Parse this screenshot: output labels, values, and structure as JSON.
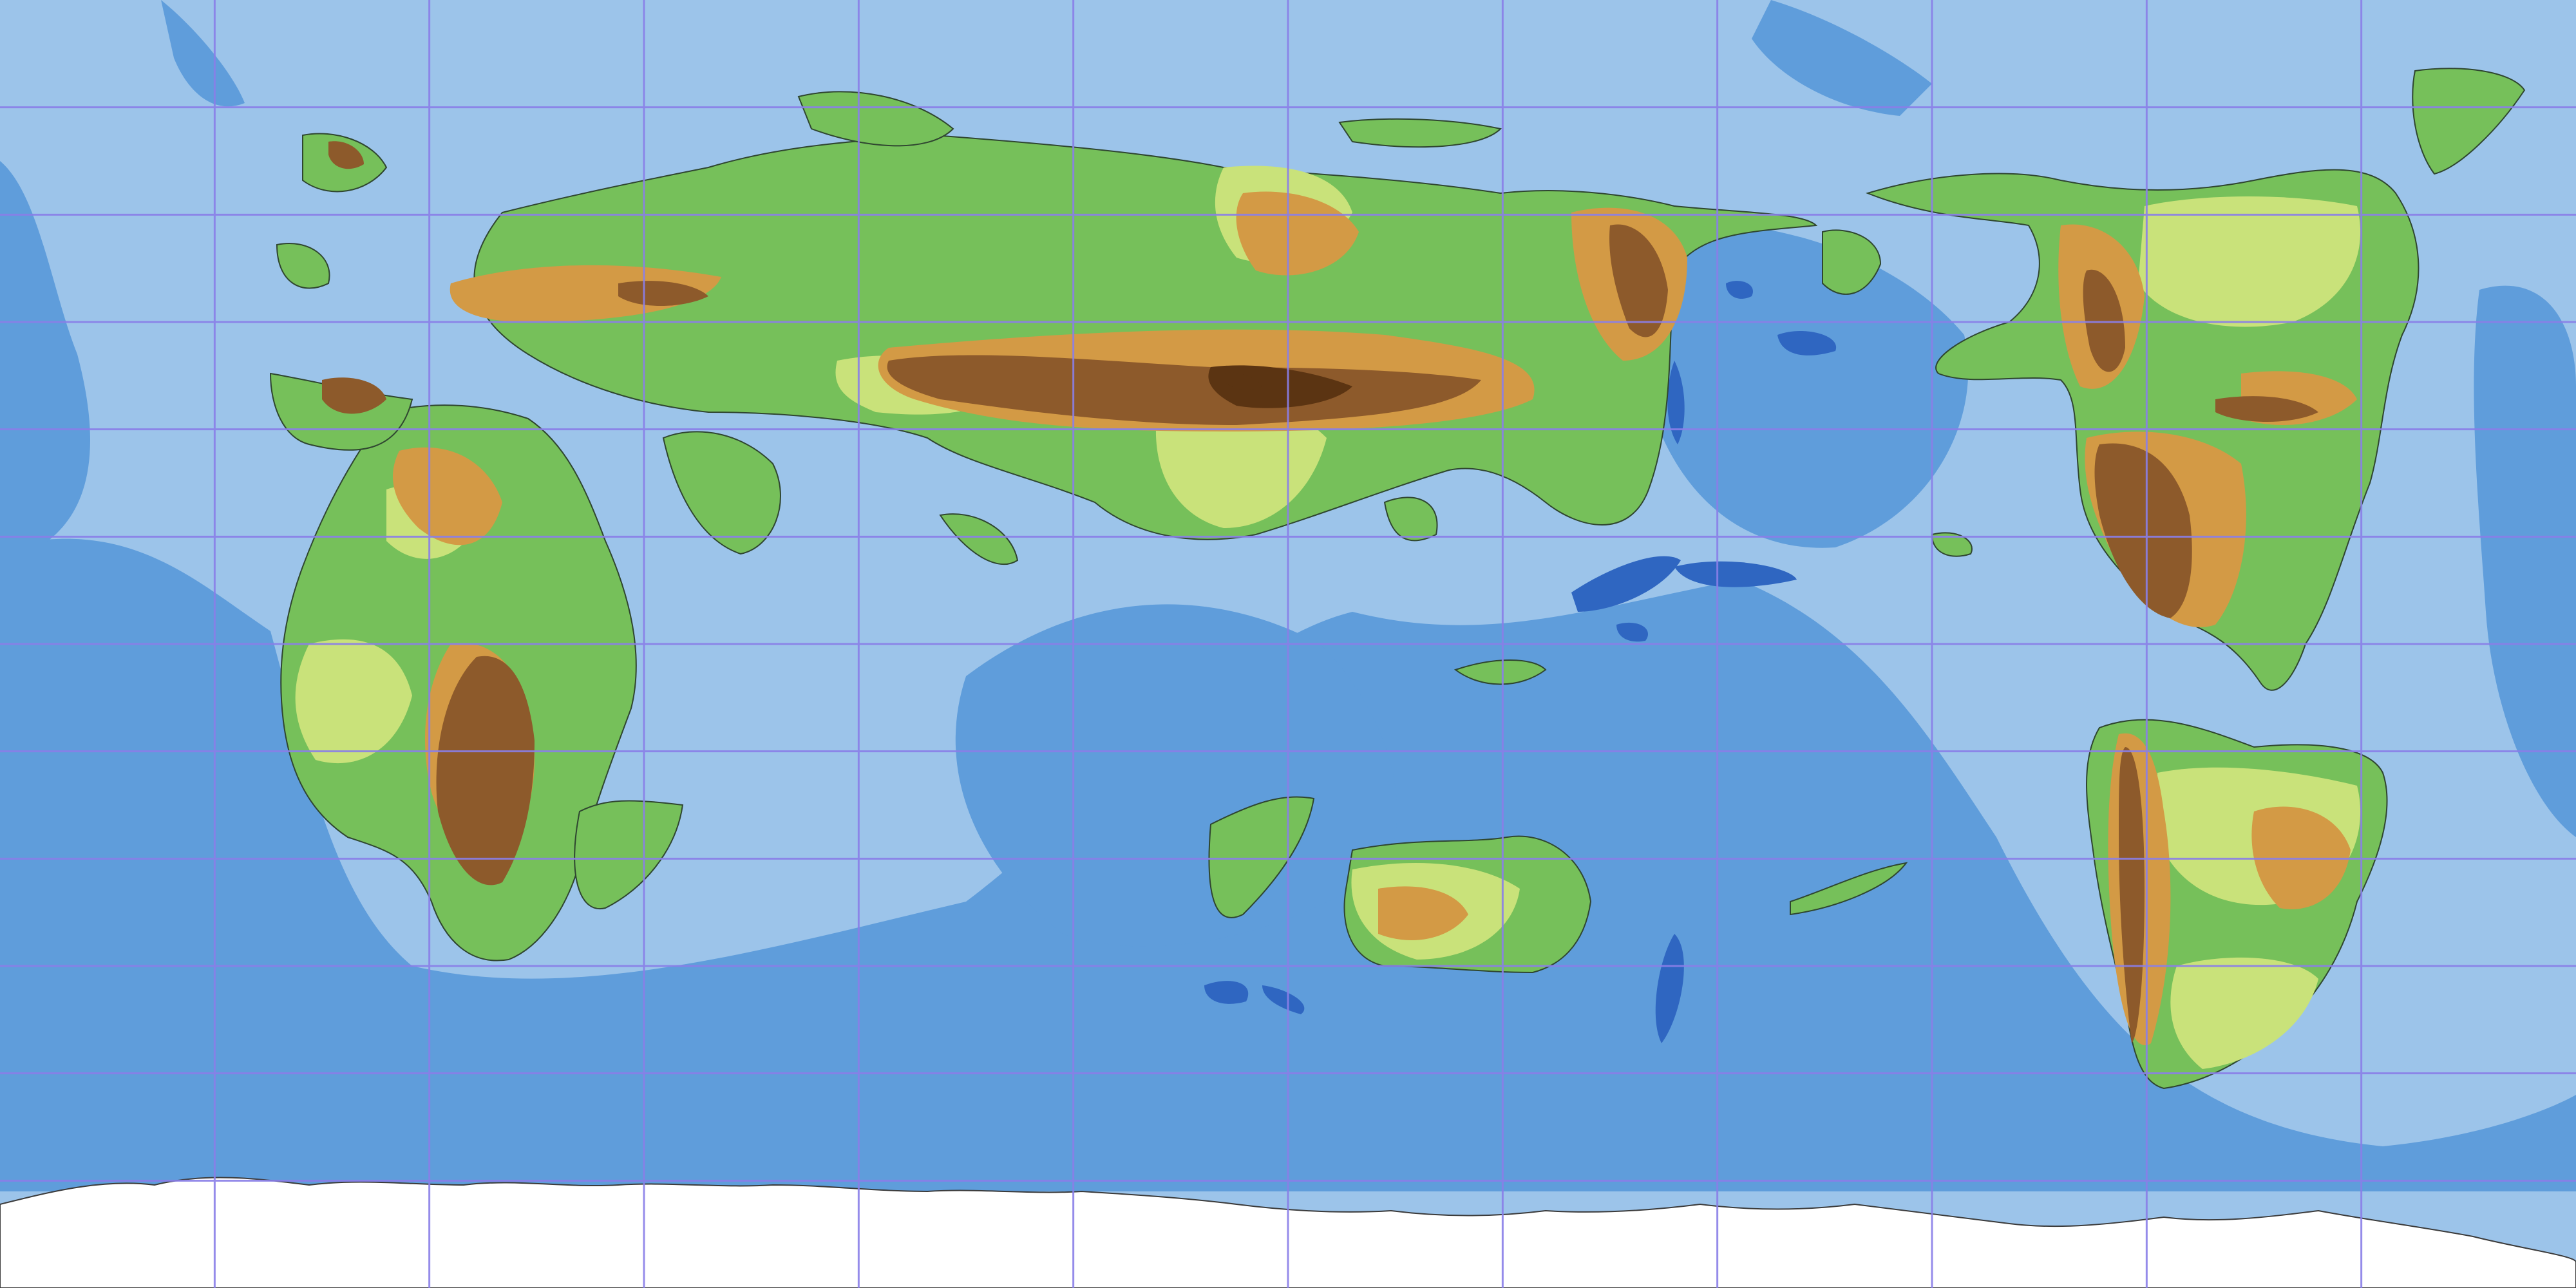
{
  "map": {
    "legend": [],
    "labels": [],
    "grid": {
      "visible": true,
      "columns": 12,
      "rows": 12
    },
    "colors": {
      "shallow_sea": "#9cc4ea",
      "deep_sea": "#5f9ddb",
      "trench": "#2f66c1",
      "lowland": "#76c05a",
      "plains": "#c9e27a",
      "hills": "#d39a45",
      "mountains": "#8d5a2b",
      "peaks": "#5b3412",
      "ice": "#ffffff",
      "grid_line": "#8a7fe8",
      "coastline": "#2f4630"
    },
    "features": [
      "north-continent",
      "west-continent",
      "north-east-continent",
      "south-east-continent",
      "south-central-island",
      "southern-ice-shelf"
    ]
  }
}
